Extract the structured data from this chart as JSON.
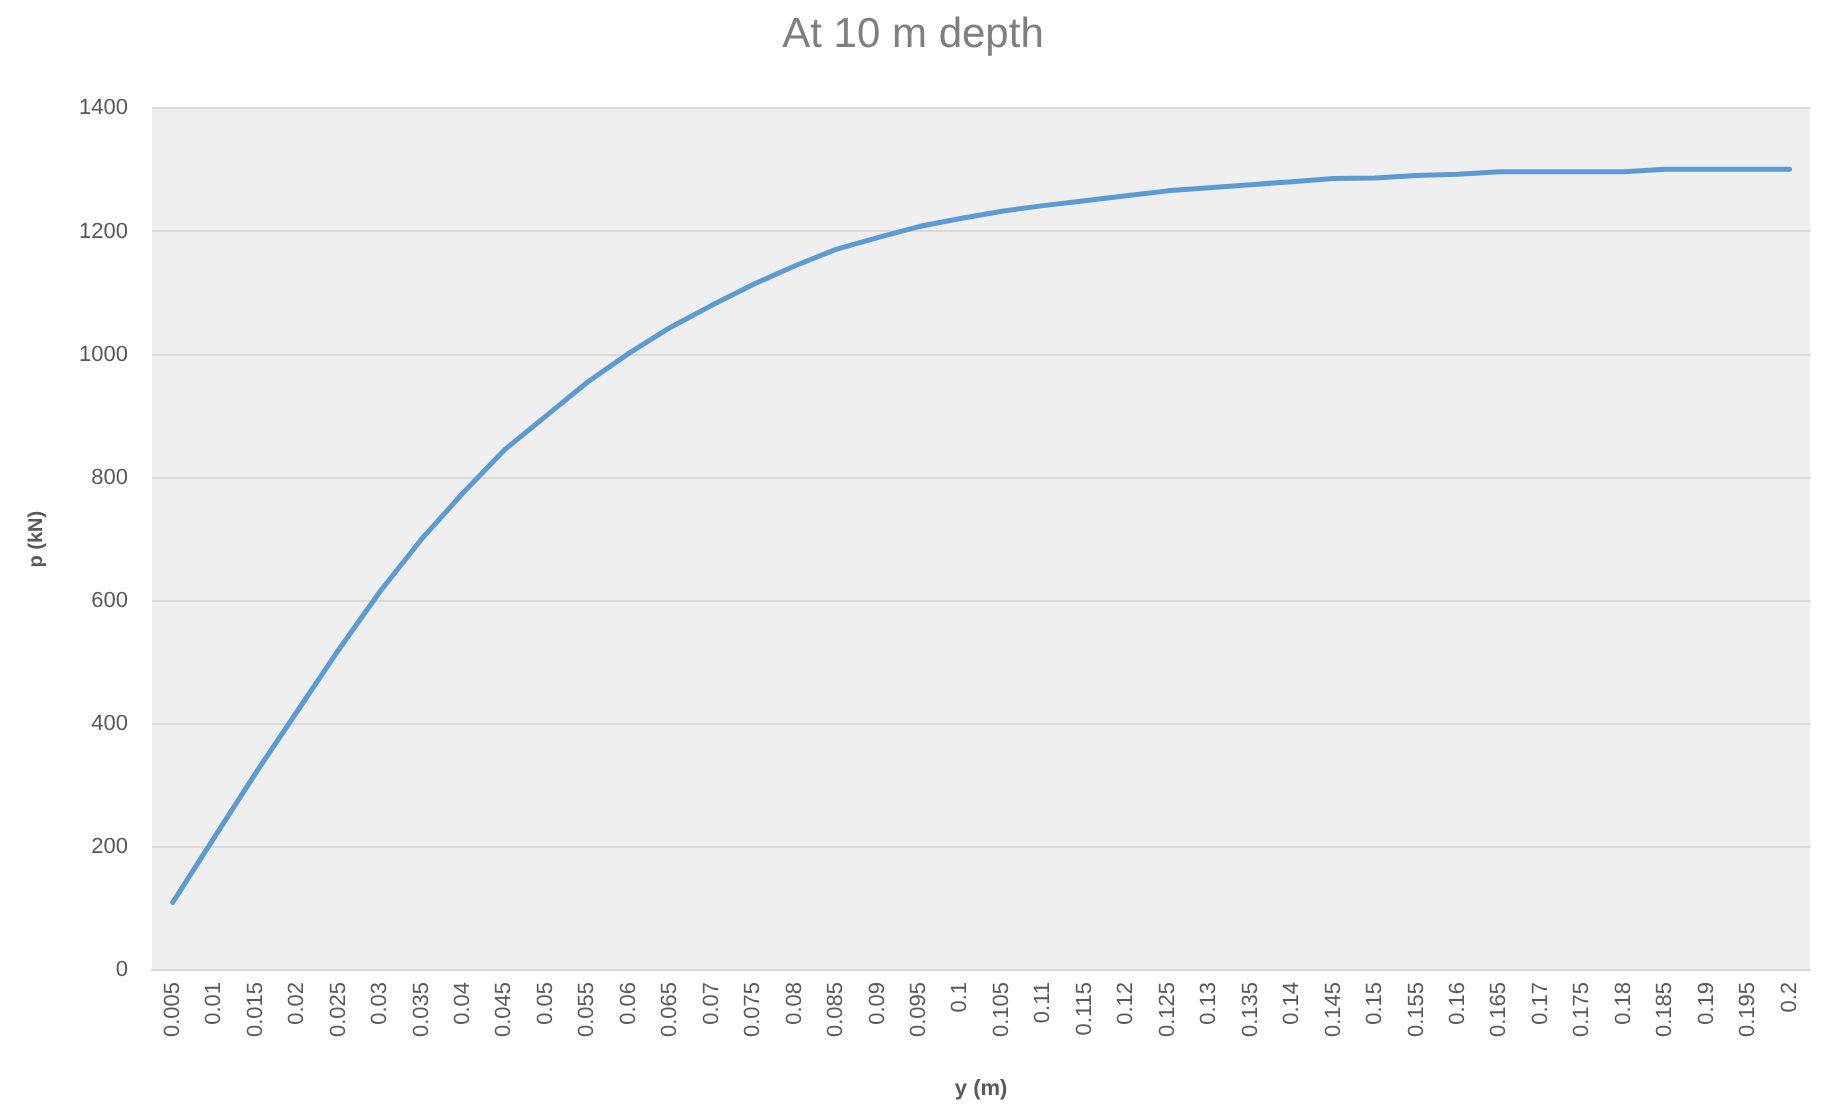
{
  "chart_data": {
    "type": "line",
    "title": "At 10 m depth",
    "xlabel": "y (m)",
    "ylabel": "p (kN)",
    "categories": [
      "0.005",
      "0.01",
      "0.015",
      "0.02",
      "0.025",
      "0.03",
      "0.035",
      "0.04",
      "0.045",
      "0.05",
      "0.055",
      "0.06",
      "0.065",
      "0.07",
      "0.075",
      "0.08",
      "0.085",
      "0.09",
      "0.095",
      "0.1",
      "0.105",
      "0.11",
      "0.115",
      "0.12",
      "0.125",
      "0.13",
      "0.135",
      "0.14",
      "0.145",
      "0.15",
      "0.155",
      "0.16",
      "0.165",
      "0.17",
      "0.175",
      "0.18",
      "0.185",
      "0.19",
      "0.195",
      "0.2"
    ],
    "series": [
      {
        "color": "#5b9bd5",
        "values": [
          110,
          215,
          320,
          420,
          520,
          615,
          700,
          775,
          845,
          900,
          955,
          1002,
          1044,
          1080,
          1114,
          1144,
          1171,
          1190,
          1208,
          1221,
          1233,
          1242,
          1250,
          1258,
          1266,
          1271,
          1276,
          1281,
          1286,
          1287,
          1291,
          1293,
          1297,
          1297,
          1297,
          1297,
          1301,
          1301,
          1301,
          1301
        ]
      }
    ],
    "ylim": [
      0,
      1400
    ],
    "yticks": [
      0,
      200,
      400,
      600,
      800,
      1000,
      1200,
      1400
    ],
    "grid": "y",
    "marker": "none"
  }
}
